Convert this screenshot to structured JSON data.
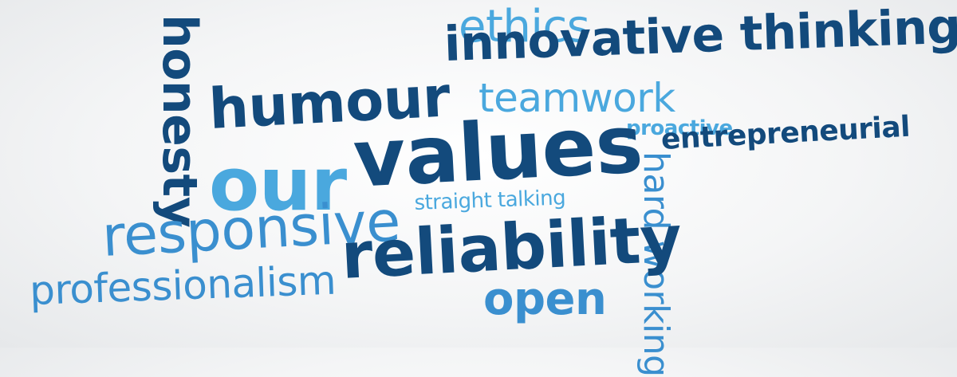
{
  "words": {
    "ethics": "ethics",
    "innovative_thinking": "innovative thinking",
    "honesty": "honesty",
    "humour": "humour",
    "teamwork": "teamwork",
    "proactive": "proactive",
    "entrepreneurial": "entrepreneurial",
    "our": "our",
    "values": "values",
    "hard_working": "hard working",
    "straight_talking": "straight talking",
    "responsive": "responsive",
    "reliability": "reliability",
    "professionalism": "professionalism",
    "open": "open"
  },
  "colors": {
    "dark_blue": "#134a7c",
    "mid_blue": "#3a8fcf",
    "light_blue": "#4aa8de",
    "background": "#f4f5f6"
  }
}
